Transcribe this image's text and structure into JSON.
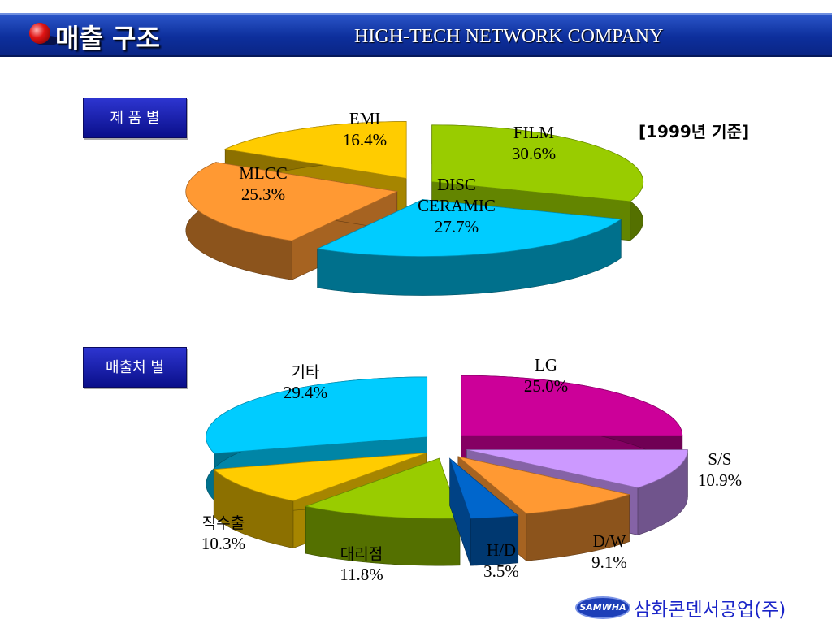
{
  "header": {
    "title": "매출 구조",
    "company": "HIGH-TECH NETWORK COMPANY"
  },
  "year_note": "[1999년 기준]",
  "footer": {
    "logo_text": "SAMWHA",
    "company_name": "삼화콘덴서공업(주)"
  },
  "colors": {
    "header": "#0d2f9c",
    "tag": "#1a1fb0",
    "footer_text": "#1a24c8"
  },
  "chart_data": [
    {
      "type": "pie",
      "tag": "제 품 별",
      "slices": [
        {
          "label_lines": [
            "FILM"
          ],
          "value_label": "30.6%",
          "value": 30.6,
          "color": "#99cc00"
        },
        {
          "label_lines": [
            "DISC",
            "CERAMIC"
          ],
          "value_label": "27.7%",
          "value": 27.7,
          "color": "#00ccff"
        },
        {
          "label_lines": [
            "MLCC"
          ],
          "value_label": "25.3%",
          "value": 25.3,
          "color": "#ff9933"
        },
        {
          "label_lines": [
            "EMI"
          ],
          "value_label": "16.4%",
          "value": 16.4,
          "color": "#ffcc00"
        }
      ]
    },
    {
      "type": "pie",
      "tag": "매출처 별",
      "slices": [
        {
          "label_lines": [
            "LG"
          ],
          "value_label": "25.0%",
          "value": 25.0,
          "color": "#cc0099"
        },
        {
          "label_lines": [
            "S/S"
          ],
          "value_label": "10.9%",
          "value": 10.9,
          "color": "#cc99ff"
        },
        {
          "label_lines": [
            "D/W"
          ],
          "value_label": "9.1%",
          "value": 9.1,
          "color": "#ff9933"
        },
        {
          "label_lines": [
            "H/D"
          ],
          "value_label": "3.5%",
          "value": 3.5,
          "color": "#0066cc"
        },
        {
          "label_lines": [
            "대리점"
          ],
          "value_label": "11.8%",
          "value": 11.8,
          "color": "#99cc00"
        },
        {
          "label_lines": [
            "직수출"
          ],
          "value_label": "10.3%",
          "value": 10.3,
          "color": "#ffcc00"
        },
        {
          "label_lines": [
            "기타"
          ],
          "value_label": "29.4%",
          "value": 29.4,
          "color": "#00ccff"
        }
      ]
    }
  ]
}
